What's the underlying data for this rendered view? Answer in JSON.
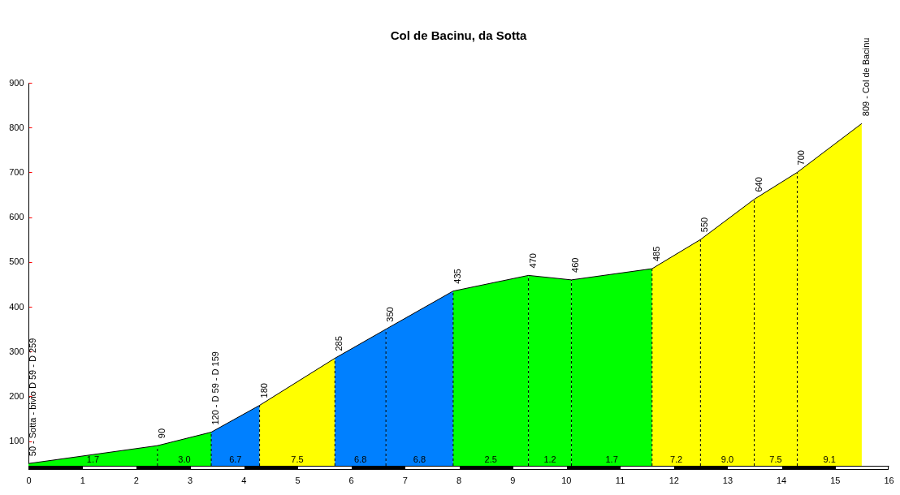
{
  "chart_data": {
    "type": "area",
    "title": "Col de Bacinu, da Sotta",
    "xlim": [
      0,
      16
    ],
    "xticks": [
      0,
      1,
      2,
      3,
      4,
      5,
      6,
      7,
      8,
      9,
      10,
      11,
      12,
      13,
      14,
      15,
      16
    ],
    "ylim": [
      45,
      900
    ],
    "yticks": [
      100,
      200,
      300,
      400,
      500,
      600,
      700,
      800,
      900
    ],
    "series": [
      {
        "color": "#00ff00",
        "x": [
          0,
          2.4
        ],
        "values": [
          50,
          90
        ]
      },
      {
        "color": "#00ff00",
        "x": [
          2.4,
          3.4
        ],
        "values": [
          90,
          120
        ]
      },
      {
        "color": "#0080ff",
        "x": [
          3.4,
          4.3
        ],
        "values": [
          120,
          180
        ]
      },
      {
        "color": "#ffff00",
        "x": [
          4.3,
          5.7
        ],
        "values": [
          180,
          285
        ]
      },
      {
        "color": "#0080ff",
        "x": [
          5.7,
          6.65
        ],
        "values": [
          285,
          350
        ]
      },
      {
        "color": "#0080ff",
        "x": [
          6.65,
          7.9
        ],
        "values": [
          350,
          435
        ]
      },
      {
        "color": "#00ff00",
        "x": [
          7.9,
          9.3
        ],
        "values": [
          435,
          470
        ]
      },
      {
        "color": "#00ff00",
        "x": [
          9.3,
          10.1
        ],
        "values": [
          470,
          460
        ]
      },
      {
        "color": "#00ff00",
        "x": [
          10.1,
          11.6
        ],
        "values": [
          460,
          485
        ]
      },
      {
        "color": "#ffff00",
        "x": [
          11.6,
          12.5
        ],
        "values": [
          485,
          550
        ]
      },
      {
        "color": "#ffff00",
        "x": [
          12.5,
          13.5
        ],
        "values": [
          550,
          640
        ]
      },
      {
        "color": "#ffff00",
        "x": [
          13.5,
          14.3
        ],
        "values": [
          640,
          700
        ]
      },
      {
        "color": "#ffff00",
        "x": [
          14.3,
          15.5
        ],
        "values": [
          700,
          809
        ]
      }
    ],
    "annotations": [
      {
        "text": "50 - Sotta - bivio D 59 - D 259",
        "x": 0,
        "y": 50
      },
      {
        "text": "90",
        "x": 2.4,
        "y": 90
      },
      {
        "text": "120 - D 59 - D 159",
        "x": 3.4,
        "y": 120
      },
      {
        "text": "180",
        "x": 4.3,
        "y": 180
      },
      {
        "text": "285",
        "x": 5.7,
        "y": 285
      },
      {
        "text": "350",
        "x": 6.65,
        "y": 350
      },
      {
        "text": "435",
        "x": 7.9,
        "y": 435
      },
      {
        "text": "470",
        "x": 9.3,
        "y": 470
      },
      {
        "text": "460",
        "x": 10.1,
        "y": 460
      },
      {
        "text": "485",
        "x": 11.6,
        "y": 485
      },
      {
        "text": "550",
        "x": 12.5,
        "y": 550
      },
      {
        "text": "640",
        "x": 13.5,
        "y": 640
      },
      {
        "text": "700",
        "x": 14.3,
        "y": 700
      },
      {
        "text": "809 - Col de Bacinu",
        "x": 15.5,
        "y": 809
      },
      "1.7",
      "3.0",
      "6.7",
      "7.5",
      "6.8",
      "6.8",
      "2.5",
      "1.2",
      "1.7",
      "7.2",
      "9.0",
      "7.5",
      "9.1"
    ]
  }
}
